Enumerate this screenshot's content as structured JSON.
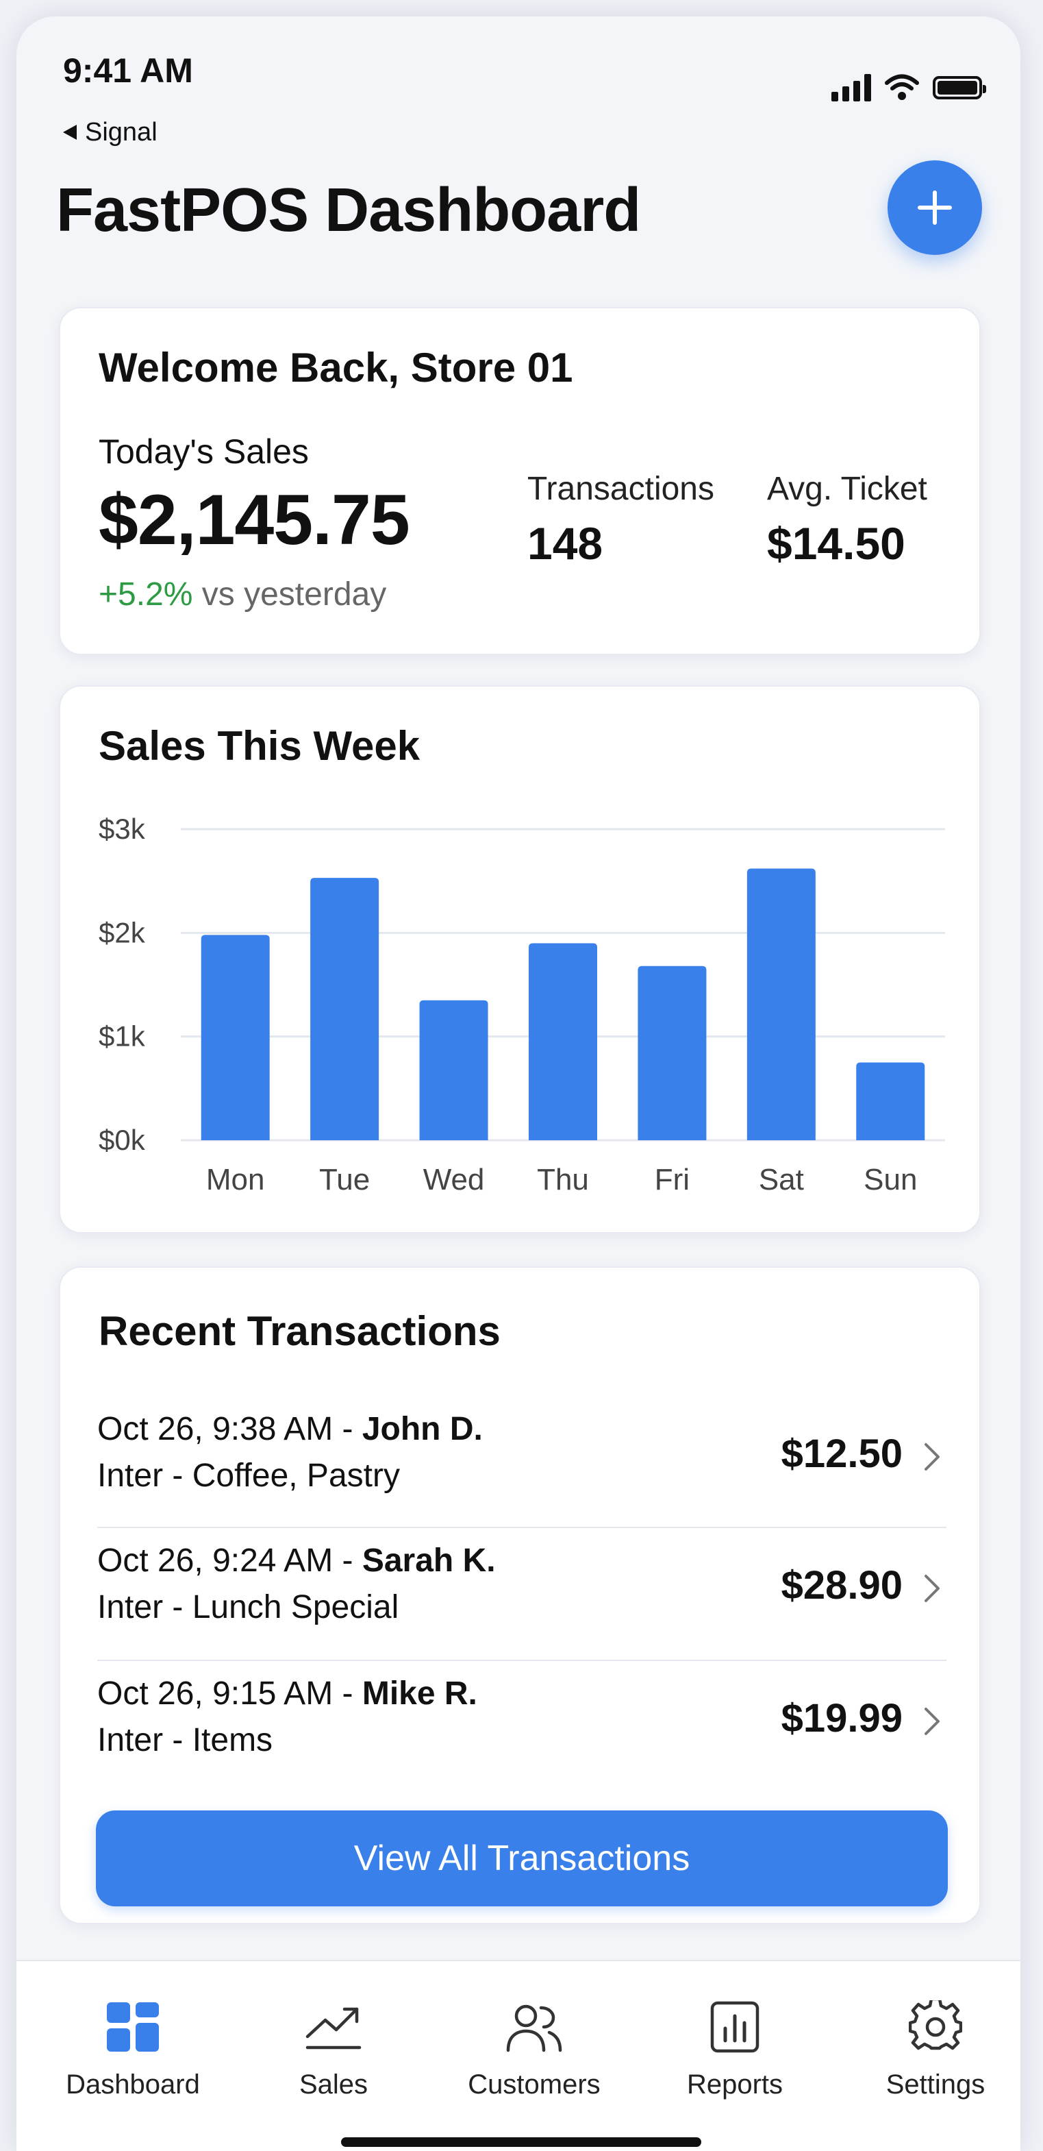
{
  "status_bar": {
    "time": "9:41 AM",
    "back_label": "Signal"
  },
  "header": {
    "title": "FastPOS Dashboard",
    "add_icon": "plus-icon"
  },
  "summary": {
    "title": "Welcome Back, Store 01",
    "sales_label": "Today's Sales",
    "sales_value": "$2,145.75",
    "delta": "+5.2%",
    "delta_suffix": " vs yesterday",
    "transactions_label": "Transactions",
    "transactions_value": "148",
    "avg_label": "Avg. Ticket",
    "avg_value": "$14.50",
    "positive_color": "#2c9b43"
  },
  "chart_card": {
    "title": "Sales This Week"
  },
  "chart_data": {
    "type": "bar",
    "title": "Sales This Week",
    "categories": [
      "Mon",
      "Tue",
      "Wed",
      "Thu",
      "Fri",
      "Sat",
      "Sun"
    ],
    "values": [
      1980,
      2530,
      1350,
      1900,
      1680,
      2620,
      750
    ],
    "ylim": [
      0,
      3000
    ],
    "yticks": [
      {
        "value": 0,
        "label": "$0k"
      },
      {
        "value": 1000,
        "label": "$1k"
      },
      {
        "value": 2000,
        "label": "$2k"
      },
      {
        "value": 3000,
        "label": "$3k"
      }
    ],
    "grid": true,
    "bar_color": "#3a80ea"
  },
  "transactions": {
    "title": "Recent Transactions",
    "items": [
      {
        "datetime": "Oct 26, 9:38 AM",
        "separator": " - ",
        "customer": "John D.",
        "detail": "Inter - Coffee, Pastry",
        "amount": "$12.50"
      },
      {
        "datetime": "Oct 26, 9:24 AM",
        "separator": " - ",
        "customer": "Sarah K.",
        "detail": "Inter - Lunch Special",
        "amount": "$28.90"
      },
      {
        "datetime": "Oct 26, 9:15 AM",
        "separator": " - ",
        "customer": "Mike R.",
        "detail": "Inter - Items",
        "amount": "$19.99"
      }
    ],
    "view_all_label": "View All Transactions"
  },
  "tabbar": {
    "items": [
      {
        "label": "Dashboard",
        "icon": "dashboard-icon",
        "active": true
      },
      {
        "label": "Sales",
        "icon": "trend-icon"
      },
      {
        "label": "Customers",
        "icon": "users-icon"
      },
      {
        "label": "Reports",
        "icon": "report-icon"
      },
      {
        "label": "Settings",
        "icon": "gear-icon"
      }
    ]
  },
  "colors": {
    "accent": "#3a80ea",
    "background": "#f3f5f9"
  }
}
